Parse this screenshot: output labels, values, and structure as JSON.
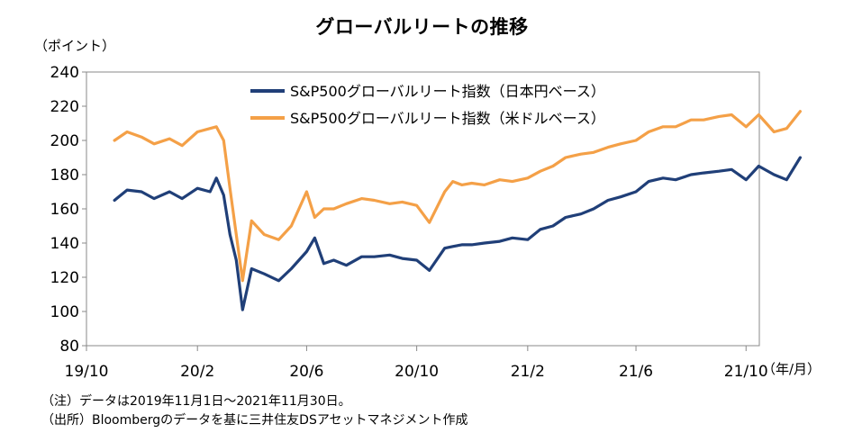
{
  "chart_data": {
    "type": "line",
    "title": "グローバルリートの推移",
    "ylabel": "（ポイント）",
    "xunit": "（年/月）",
    "ylim": [
      80,
      240
    ],
    "yticks": [
      80,
      100,
      120,
      140,
      160,
      180,
      200,
      220,
      240
    ],
    "xticks": [
      "19/10",
      "20/2",
      "20/6",
      "20/10",
      "21/2",
      "21/6",
      "21/10"
    ],
    "grid": false,
    "legend": "top-center",
    "x": [
      "2019-11-01",
      "2019-11-15",
      "2019-12-01",
      "2019-12-15",
      "2020-01-01",
      "2020-01-15",
      "2020-02-01",
      "2020-02-15",
      "2020-02-22",
      "2020-03-01",
      "2020-03-08",
      "2020-03-15",
      "2020-03-22",
      "2020-04-01",
      "2020-04-15",
      "2020-05-01",
      "2020-05-15",
      "2020-06-01",
      "2020-06-10",
      "2020-06-20",
      "2020-07-01",
      "2020-07-15",
      "2020-08-01",
      "2020-08-15",
      "2020-09-01",
      "2020-09-15",
      "2020-10-01",
      "2020-10-15",
      "2020-11-01",
      "2020-11-10",
      "2020-11-20",
      "2020-12-01",
      "2020-12-15",
      "2021-01-01",
      "2021-01-15",
      "2021-02-01",
      "2021-02-15",
      "2021-03-01",
      "2021-03-15",
      "2021-04-01",
      "2021-04-15",
      "2021-05-01",
      "2021-05-15",
      "2021-06-01",
      "2021-06-15",
      "2021-07-01",
      "2021-07-15",
      "2021-08-01",
      "2021-08-15",
      "2021-09-01",
      "2021-09-15",
      "2021-10-01",
      "2021-10-15",
      "2021-11-01",
      "2021-11-15",
      "2021-11-30"
    ],
    "series": [
      {
        "name": "S&P500グローバルリート指数（日本円ベース）",
        "color": "#203f78",
        "values": [
          165,
          171,
          170,
          166,
          170,
          166,
          172,
          170,
          178,
          168,
          145,
          130,
          101,
          125,
          122,
          118,
          125,
          135,
          143,
          128,
          130,
          127,
          132,
          132,
          133,
          131,
          130,
          124,
          137,
          138,
          139,
          139,
          140,
          141,
          143,
          142,
          148,
          150,
          155,
          157,
          160,
          165,
          167,
          170,
          176,
          178,
          177,
          180,
          181,
          182,
          183,
          177,
          185,
          180,
          177,
          190
        ]
      },
      {
        "name": "S&P500グローバルリート指数（米ドルベース）",
        "color": "#f4a047",
        "values": [
          200,
          205,
          202,
          198,
          201,
          197,
          205,
          207,
          208,
          200,
          172,
          145,
          118,
          153,
          145,
          142,
          150,
          170,
          155,
          160,
          160,
          163,
          166,
          165,
          163,
          164,
          162,
          152,
          170,
          176,
          174,
          175,
          174,
          177,
          176,
          178,
          182,
          185,
          190,
          192,
          193,
          196,
          198,
          200,
          205,
          208,
          208,
          212,
          212,
          214,
          215,
          208,
          215,
          205,
          207,
          217
        ]
      }
    ]
  }
}
